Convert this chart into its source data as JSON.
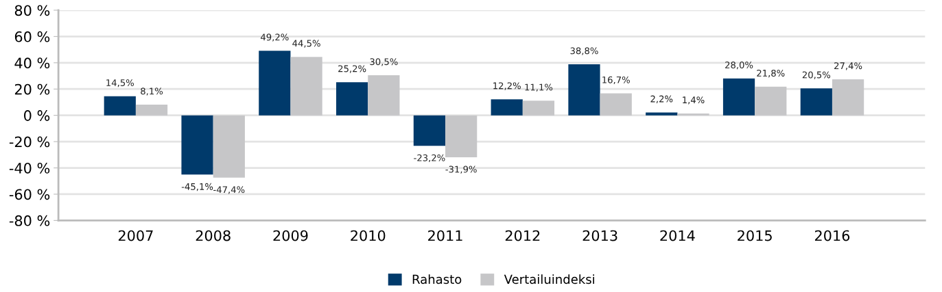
{
  "chart_data": {
    "type": "bar",
    "categories": [
      "2007",
      "2008",
      "2009",
      "2010",
      "2011",
      "2012",
      "2013",
      "2014",
      "2015",
      "2016"
    ],
    "series": [
      {
        "name": "Rahasto",
        "color": "#003a6b",
        "values": [
          14.5,
          -45.1,
          49.2,
          25.2,
          -23.2,
          12.2,
          38.8,
          2.2,
          28.0,
          20.5
        ],
        "value_labels": [
          "14,5%",
          "-45,1%",
          "49,2%",
          "25,2%",
          "-23,2%",
          "12,2%",
          "38,8%",
          "2,2%",
          "28,0%",
          "20,5%"
        ]
      },
      {
        "name": "Vertailuindeksi",
        "color": "#c6c6c8",
        "values": [
          8.1,
          -47.4,
          44.5,
          30.5,
          -31.9,
          11.1,
          16.7,
          1.4,
          21.8,
          27.4
        ],
        "value_labels": [
          "8,1%",
          "-47,4%",
          "44,5%",
          "30,5%",
          "-31,9%",
          "11,1%",
          "16,7%",
          "1,4%",
          "21,8%",
          "27,4%"
        ]
      }
    ],
    "ylim": [
      -80,
      80
    ],
    "yticks": [
      {
        "value": -80,
        "label": "-80 %"
      },
      {
        "value": -60,
        "label": "-60 %"
      },
      {
        "value": -40,
        "label": "-40 %"
      },
      {
        "value": -20,
        "label": "-20 %"
      },
      {
        "value": 0,
        "label": "0 %"
      },
      {
        "value": 20,
        "label": "20 %"
      },
      {
        "value": 40,
        "label": "40 %"
      },
      {
        "value": 60,
        "label": "60 %"
      },
      {
        "value": 80,
        "label": "80 %"
      }
    ],
    "grid": "y",
    "legend": "bottom"
  }
}
